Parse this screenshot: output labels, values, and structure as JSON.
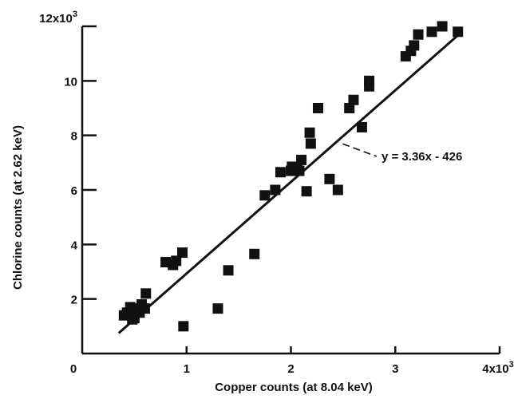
{
  "chart_data": {
    "type": "scatter",
    "xlabel": "Copper counts (at 8.04 keV)",
    "ylabel": "Chlorine counts (at 2.62 keV)",
    "x_multiplier_label": "4x10",
    "x_multiplier_exp": "3",
    "y_multiplier_label": "12x10",
    "y_multiplier_exp": "3",
    "xlim": [
      0,
      4000
    ],
    "ylim": [
      0,
      12000
    ],
    "x_ticks": [
      "0",
      "1",
      "2",
      "3"
    ],
    "y_ticks": [
      "2",
      "4",
      "6",
      "8",
      "10"
    ],
    "fit_line": {
      "label": "y = 3.36x - 426",
      "slope": 3.36,
      "intercept": -426,
      "x_range": [
        350,
        3600
      ]
    },
    "grid": false,
    "series": [
      {
        "values": [
          [
            400,
            1400
          ],
          [
            430,
            1500
          ],
          [
            460,
            1700
          ],
          [
            480,
            1250
          ],
          [
            500,
            1300
          ],
          [
            520,
            1650
          ],
          [
            550,
            1500
          ],
          [
            570,
            1800
          ],
          [
            600,
            1650
          ],
          [
            610,
            2200
          ],
          [
            800,
            3350
          ],
          [
            870,
            3250
          ],
          [
            900,
            3400
          ],
          [
            960,
            3700
          ],
          [
            970,
            1000
          ],
          [
            1300,
            1650
          ],
          [
            1400,
            3050
          ],
          [
            1650,
            3650
          ],
          [
            1750,
            5800
          ],
          [
            1850,
            6000
          ],
          [
            1900,
            6650
          ],
          [
            2000,
            6700
          ],
          [
            2010,
            6850
          ],
          [
            2060,
            6800
          ],
          [
            2080,
            6700
          ],
          [
            2100,
            7100
          ],
          [
            2150,
            5950
          ],
          [
            2180,
            8100
          ],
          [
            2190,
            7700
          ],
          [
            2260,
            9000
          ],
          [
            2370,
            6400
          ],
          [
            2450,
            6000
          ],
          [
            2560,
            9000
          ],
          [
            2600,
            9300
          ],
          [
            2680,
            8300
          ],
          [
            2750,
            9800
          ],
          [
            2750,
            10000
          ],
          [
            3100,
            10900
          ],
          [
            3150,
            11100
          ],
          [
            3180,
            11300
          ],
          [
            3220,
            11700
          ],
          [
            3350,
            11800
          ],
          [
            3450,
            12000
          ],
          [
            3600,
            11800
          ]
        ]
      }
    ]
  }
}
